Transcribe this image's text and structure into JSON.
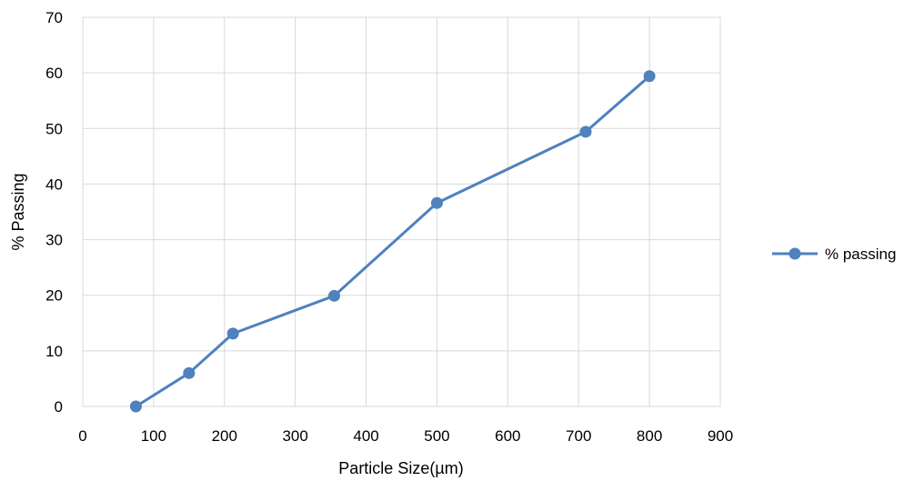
{
  "chart_data": {
    "type": "line",
    "title": "",
    "xlabel": "Particle Size(µm)",
    "ylabel": "% Passing",
    "xlim": [
      0,
      900
    ],
    "ylim": [
      0,
      70
    ],
    "xticks": [
      0,
      100,
      200,
      300,
      400,
      500,
      600,
      700,
      800,
      900
    ],
    "yticks": [
      0,
      10,
      20,
      30,
      40,
      50,
      60,
      70
    ],
    "grid": true,
    "legend_position": "right",
    "series": [
      {
        "name": "% passing",
        "color": "#4f81bd",
        "marker": "circle",
        "x": [
          75,
          150,
          212,
          355,
          500,
          710,
          800
        ],
        "y": [
          0,
          6,
          13.1,
          19.9,
          36.6,
          49.4,
          59.4
        ]
      }
    ]
  }
}
